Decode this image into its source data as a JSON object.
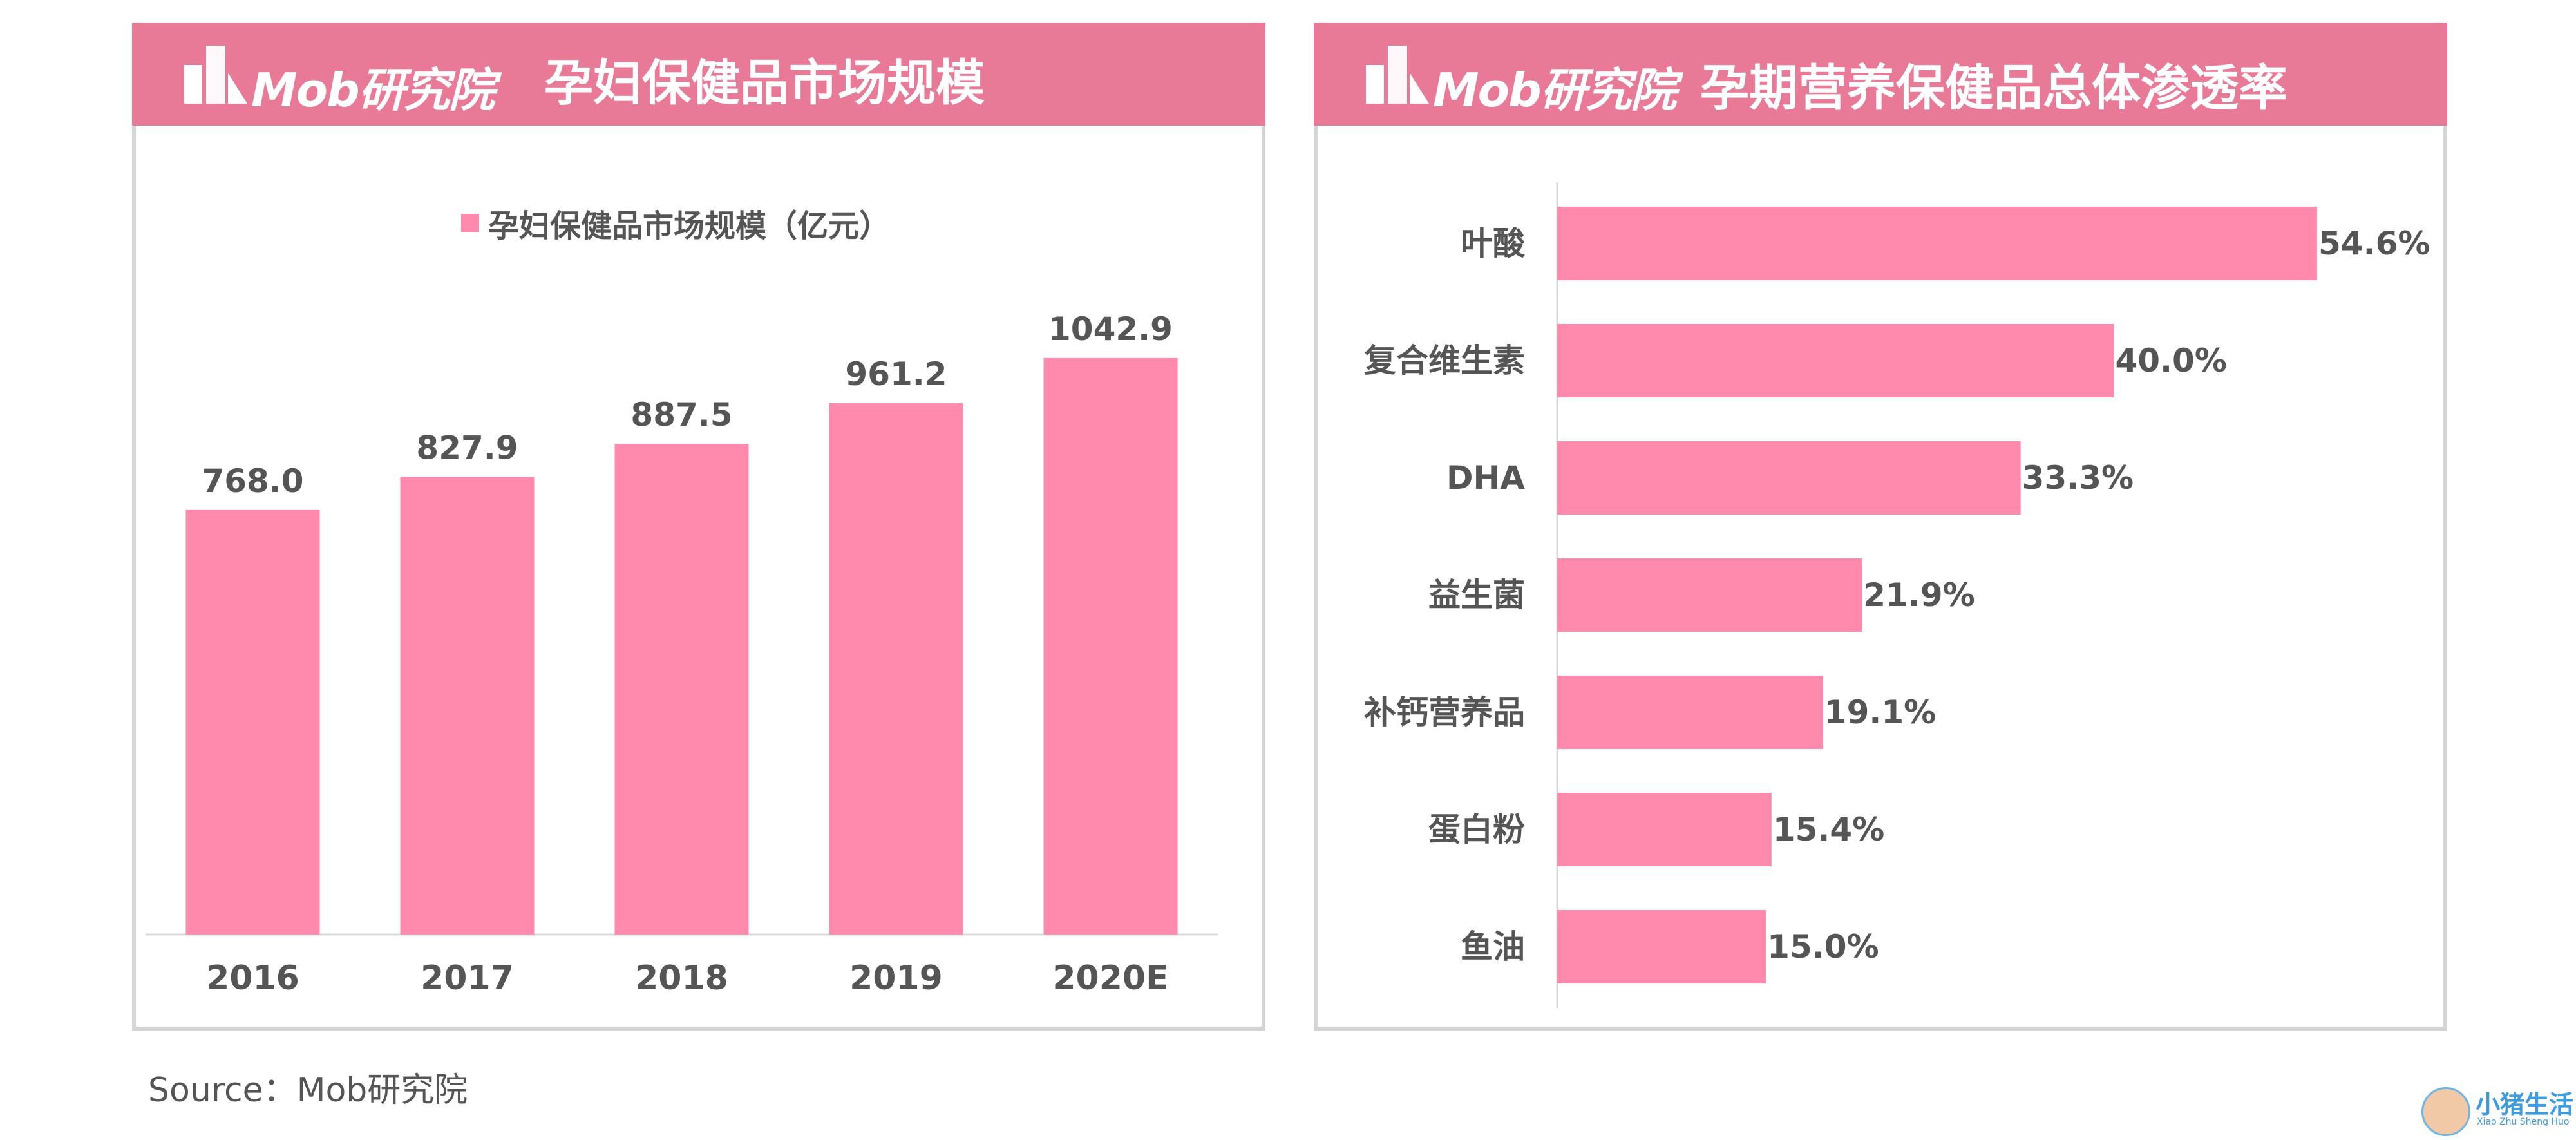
{
  "logo_text": "Mob研究院",
  "left_panel": {
    "title": "孕妇保健品市场规模"
  },
  "right_panel": {
    "title": "孕期营养保健品总体渗透率"
  },
  "source": "Source：Mob研究院",
  "watermark": {
    "text": "小猪生活",
    "sub": "Xiao Zhu Sheng Huo"
  },
  "colors": {
    "header": "#e97a97",
    "bar": "#ff8aad",
    "border": "#d4d4d4",
    "text": "#555555"
  },
  "chart_data": [
    {
      "type": "bar",
      "orientation": "vertical",
      "legend": "孕妇保健品市场规模（亿元）",
      "legend_position": "top",
      "categories": [
        "2016",
        "2017",
        "2018",
        "2019",
        "2020E"
      ],
      "values": [
        768.0,
        827.9,
        887.5,
        961.2,
        1042.9
      ],
      "value_labels": [
        "768.0",
        "827.9",
        "887.5",
        "961.2",
        "1042.9"
      ],
      "ylim": [
        0,
        1200
      ],
      "grid": false
    },
    {
      "type": "bar",
      "orientation": "horizontal",
      "categories": [
        "叶酸",
        "复合维生素",
        "DHA",
        "益生菌",
        "补钙营养品",
        "蛋白粉",
        "鱼油"
      ],
      "values": [
        54.6,
        40.0,
        33.3,
        21.9,
        19.1,
        15.4,
        15.0
      ],
      "value_labels": [
        "54.6%",
        "40.0%",
        "33.3%",
        "21.9%",
        "19.1%",
        "15.4%",
        "15.0%"
      ],
      "unit": "%",
      "xlim": [
        0,
        54.6
      ],
      "grid": false
    }
  ]
}
